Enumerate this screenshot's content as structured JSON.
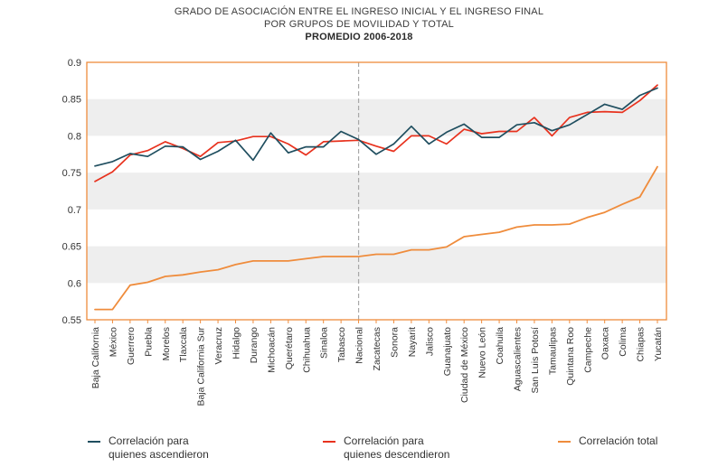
{
  "title_lines": [
    "GRADO DE ASOCIACIÓN ENTRE EL INGRESO INICIAL Y EL INGRESO FINAL",
    "POR GRUPOS DE MOVILIDAD Y TOTAL",
    "PROMEDIO 2006-2018"
  ],
  "colors": {
    "asc": "#1f4e5f",
    "desc": "#e8321e",
    "total": "#ef8c3c",
    "frame": "#ef8c3c",
    "band": "#eeeeee",
    "divider": "#a8a8a8"
  },
  "legend": {
    "asc_line1": "Correlación para",
    "asc_line2": "quienes ascendieron",
    "desc_line1": "Correlación para",
    "desc_line2": "quienes descendieron",
    "total": "Correlación total"
  },
  "chart_data": {
    "type": "line",
    "title": "GRADO DE ASOCIACIÓN ENTRE EL INGRESO INICIAL Y EL INGRESO FINAL POR GRUPOS DE MOVILIDAD Y TOTAL PROMEDIO 2006-2018",
    "xlabel": "",
    "ylabel": "",
    "ylim": [
      0.55,
      0.9
    ],
    "yticks": [
      "0.55",
      "0.6",
      "0.65",
      "0.7",
      "0.75",
      "0.8",
      "0.85",
      "0.9"
    ],
    "grid": "alternating horizontal bands",
    "legend_position": "bottom",
    "divider_category": "Nacional",
    "categories": [
      "Baja California",
      "México",
      "Guerrero",
      "Puebla",
      "Morelos",
      "Tlaxcala",
      "Baja California Sur",
      "Veracruz",
      "Hidalgo",
      "Durango",
      "Michoacán",
      "Querétaro",
      "Chihuahua",
      "Sinaloa",
      "Tabasco",
      "Nacional",
      "Zacatecas",
      "Sonora",
      "Nayarit",
      "Jalisco",
      "Guanajuato",
      "Ciudad de México",
      "Nuevo León",
      "Coahuila",
      "Aguascalientes",
      "San Luis Potosí",
      "Tamaulipas",
      "Quintana Roo",
      "Campeche",
      "Oaxaca",
      "Colima",
      "Chiapas",
      "Yucatán"
    ],
    "series": [
      {
        "name": "Correlación para quienes ascendieron",
        "key": "asc",
        "values": [
          0.759,
          0.765,
          0.776,
          0.772,
          0.786,
          0.785,
          0.768,
          0.779,
          0.794,
          0.767,
          0.804,
          0.777,
          0.785,
          0.785,
          0.806,
          0.795,
          0.775,
          0.789,
          0.813,
          0.789,
          0.805,
          0.816,
          0.798,
          0.798,
          0.815,
          0.818,
          0.807,
          0.815,
          0.829,
          0.843,
          0.836,
          0.855,
          0.865
        ]
      },
      {
        "name": "Correlación para quienes descendieron",
        "key": "desc",
        "values": [
          0.738,
          0.751,
          0.774,
          0.78,
          0.792,
          0.783,
          0.772,
          0.791,
          0.793,
          0.799,
          0.799,
          0.789,
          0.774,
          0.792,
          0.793,
          0.794,
          0.786,
          0.779,
          0.8,
          0.8,
          0.789,
          0.809,
          0.803,
          0.806,
          0.806,
          0.825,
          0.8,
          0.825,
          0.832,
          0.833,
          0.832,
          0.848,
          0.869
        ]
      },
      {
        "name": "Correlación total",
        "key": "total",
        "values": [
          0.564,
          0.564,
          0.597,
          0.601,
          0.609,
          0.611,
          0.615,
          0.618,
          0.625,
          0.63,
          0.63,
          0.63,
          0.633,
          0.636,
          0.636,
          0.636,
          0.639,
          0.639,
          0.645,
          0.645,
          0.649,
          0.663,
          0.666,
          0.669,
          0.676,
          0.679,
          0.679,
          0.68,
          0.689,
          0.696,
          0.707,
          0.717,
          0.758
        ]
      }
    ]
  }
}
